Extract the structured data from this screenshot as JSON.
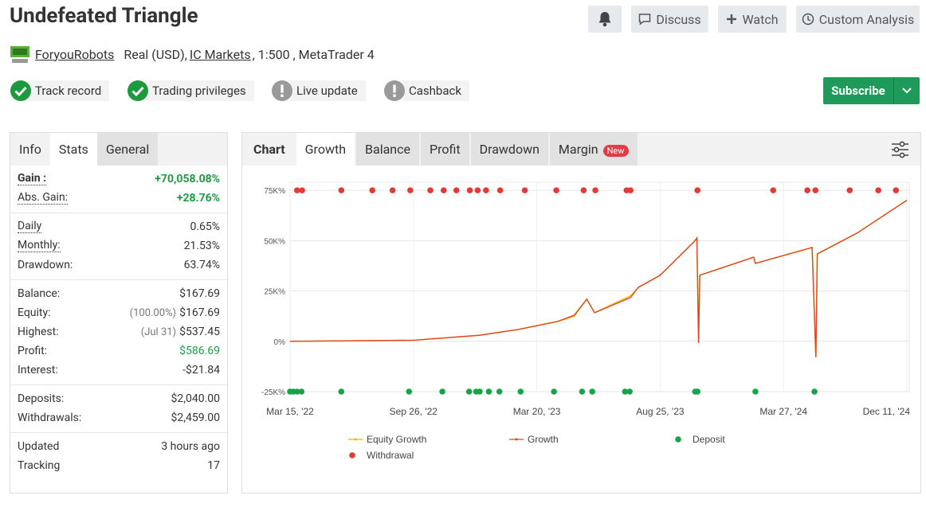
{
  "header": {
    "title": "Undefeated Triangle",
    "buttons": [
      "Discuss",
      "Watch",
      "Custom Analysis"
    ],
    "account": {
      "user": "ForyouRobots",
      "type": "Real (USD),",
      "broker": "IC Markets",
      "details": ", 1:500 , MetaTrader 4"
    }
  },
  "badges": [
    {
      "label": "Track record",
      "checked": true
    },
    {
      "label": "Trading privileges",
      "checked": true
    },
    {
      "label": "Live update",
      "checked": false
    },
    {
      "label": "Cashback",
      "checked": false
    }
  ],
  "subscribe": "Subscribe",
  "stats_tabs": {
    "items": [
      "Info",
      "Stats",
      "General"
    ],
    "active": 1
  },
  "stats": [
    [
      {
        "label": "Gain :",
        "value": "+70,058.08%",
        "color": "#1a9e3f",
        "dotted": true,
        "bold": true
      },
      {
        "label": "Abs. Gain:",
        "value": "+28.76%",
        "color": "#1a9e3f",
        "dotted": true
      }
    ],
    [
      {
        "label": "Daily",
        "value": "0.65%",
        "dotted": true
      },
      {
        "label": "Monthly:",
        "value": "21.53%",
        "dotted": true
      },
      {
        "label": "Drawdown:",
        "value": "63.74%"
      }
    ],
    [
      {
        "label": "Balance:",
        "value": "$167.69"
      },
      {
        "label": "Equity:",
        "note": "(100.00%)",
        "value": "$167.69"
      },
      {
        "label": "Highest:",
        "note": "(Jul 31)",
        "value": "$537.45"
      },
      {
        "label": "Profit:",
        "value": "$586.69",
        "color": "#1a9e3f"
      },
      {
        "label": "Interest:",
        "value": "-$21.84"
      }
    ],
    [
      {
        "label": "Deposits:",
        "value": "$2,040.00"
      },
      {
        "label": "Withdrawals:",
        "value": "$2,459.00"
      }
    ],
    [
      {
        "label": "Updated",
        "value": "3 hours ago"
      },
      {
        "label": "Tracking",
        "value": "17"
      }
    ]
  ],
  "chart_tabs": {
    "title": "Chart",
    "items": [
      "Growth",
      "Balance",
      "Profit",
      "Drawdown",
      "Margin"
    ],
    "active": 0,
    "new_badge": "New"
  },
  "chart_data": {
    "type": "line",
    "x": [
      "2022-03-15",
      "2022-09-26",
      "2022-12-29",
      "2023-02-22",
      "2023-04-16",
      "2023-05-07",
      "2023-05-23",
      "2023-06-02",
      "2023-07-18",
      "2023-07-28",
      "2023-08-25",
      "2023-10-24",
      "2023-10-28",
      "2023-10-31",
      "2023-11-02",
      "2024-02-04",
      "2024-02-07",
      "2024-05-26",
      "2024-06-03",
      "2024-06-06",
      "2024-08-28",
      "2024-12-11"
    ],
    "series": [
      {
        "name": "Equity Growth",
        "color": "#f5b400",
        "values": [
          0,
          500,
          3000,
          5900,
          9900,
          12500,
          20900,
          14200,
          22500,
          26800,
          32800,
          49700,
          51300,
          -800,
          32800,
          41800,
          38700,
          46600,
          -7900,
          43400,
          53700,
          70058.08
        ]
      },
      {
        "name": "Growth",
        "color": "#e0412d",
        "values": [
          0,
          500,
          3000,
          5900,
          9900,
          13000,
          20900,
          14200,
          21700,
          26800,
          32800,
          49700,
          51300,
          -800,
          32800,
          41800,
          38700,
          46600,
          -7900,
          43400,
          53700,
          70058.08
        ]
      }
    ],
    "markers": [
      {
        "name": "Deposit",
        "color": "#16a34a",
        "edge": "bottom",
        "x": [
          "2022-03-15",
          "2022-03-20",
          "2022-03-26",
          "2022-04-02",
          "2022-06-04",
          "2022-09-19",
          "2022-11-06",
          "2022-12-14",
          "2022-12-24",
          "2022-12-29",
          "2023-01-11",
          "2023-01-26",
          "2023-02-25",
          "2023-04-11",
          "2023-05-17",
          "2023-05-30",
          "2023-07-11",
          "2023-07-17",
          "2023-10-25",
          "2023-10-29",
          "2024-02-07",
          "2024-05-31"
        ]
      },
      {
        "name": "Withdrawal",
        "color": "#e53935",
        "edge": "top",
        "x": [
          "2022-03-26",
          "2022-04-03",
          "2022-06-04",
          "2022-07-23",
          "2022-08-24",
          "2022-09-21",
          "2022-10-20",
          "2022-11-08",
          "2022-11-26",
          "2022-12-15",
          "2022-12-26",
          "2023-01-07",
          "2023-01-27",
          "2023-03-03",
          "2023-04-14",
          "2023-05-19",
          "2023-06-03",
          "2023-07-13",
          "2023-07-18",
          "2023-10-29",
          "2024-03-09",
          "2024-05-16",
          "2024-06-02",
          "2024-08-13",
          "2024-10-12",
          "2024-11-18"
        ]
      }
    ],
    "xticks": [
      {
        "value": "2022-03-15",
        "label": "Mar 15, '22"
      },
      {
        "value": "2022-09-26",
        "label": "Sep 26, '22"
      },
      {
        "value": "2023-03-20",
        "label": "Mar 20, '23"
      },
      {
        "value": "2023-08-25",
        "label": "Aug 25, '23"
      },
      {
        "value": "2024-03-27",
        "label": "Mar 27, '24"
      },
      {
        "value": "2024-12-11",
        "label": "Dec 11, '24"
      }
    ],
    "ylim": [
      -25000,
      79000
    ],
    "yticks": [
      {
        "value": -25000,
        "label": "-25K%"
      },
      {
        "value": 0,
        "label": "0%"
      },
      {
        "value": 25000,
        "label": "25K%"
      },
      {
        "value": 50000,
        "label": "50K%"
      },
      {
        "value": 75000,
        "label": "75K%"
      }
    ],
    "grid": true
  }
}
